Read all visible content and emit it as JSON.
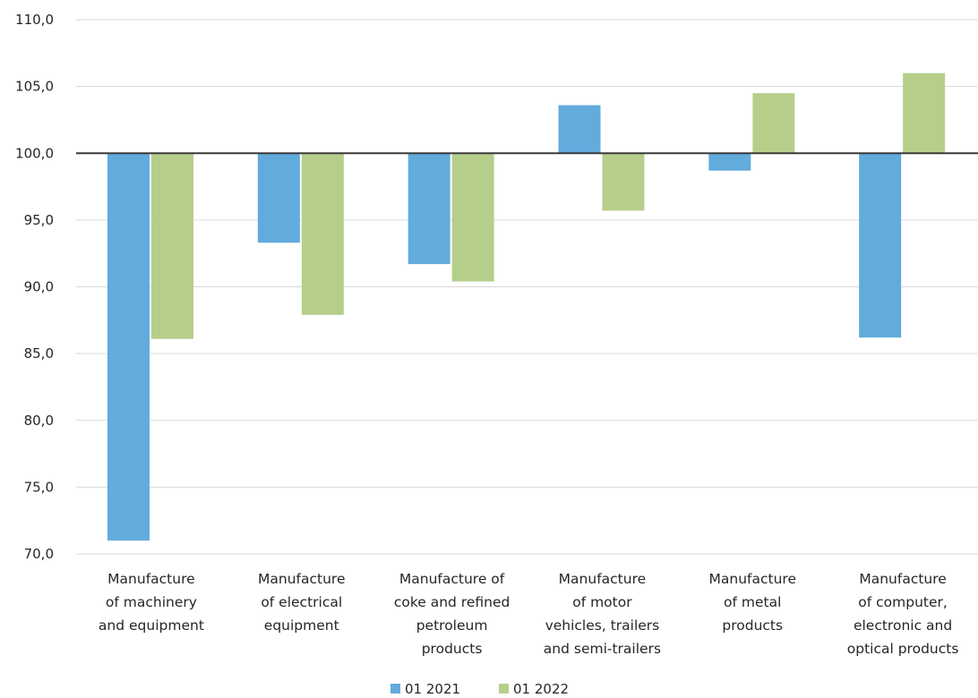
{
  "chart_data": {
    "type": "bar",
    "categories": [
      [
        "Manufacture",
        "of machinery",
        "and equipment"
      ],
      [
        "Manufacture",
        "of electrical",
        "equipment"
      ],
      [
        "Manufacture of",
        "coke and refined",
        "petroleum",
        "products"
      ],
      [
        "Manufacture",
        "of motor",
        "vehicles, trailers",
        "and semi-trailers"
      ],
      [
        "Manufacture",
        "of metal",
        "products"
      ],
      [
        "Manufacture",
        "of computer,",
        "electronic and",
        "optical products"
      ]
    ],
    "series": [
      {
        "name": "01 2021",
        "color": "#62abdd",
        "values": [
          71.0,
          93.3,
          91.7,
          103.6,
          98.7,
          86.2
        ]
      },
      {
        "name": "01 2022",
        "color": "#b5cf8b",
        "values": [
          86.1,
          87.9,
          90.4,
          95.7,
          104.5,
          106.0
        ]
      }
    ],
    "baseline_value": 100.0,
    "ylim": [
      70,
      110
    ],
    "ytick_step": 5,
    "ytick_labels": [
      "70,0",
      "75,0",
      "80,0",
      "85,0",
      "90,0",
      "95,0",
      "100,0",
      "105,0",
      "110,0"
    ],
    "grid": true,
    "legend_position": "bottom"
  }
}
